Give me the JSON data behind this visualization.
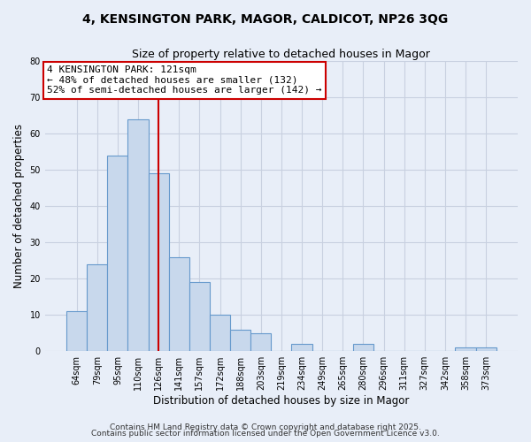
{
  "title": "4, KENSINGTON PARK, MAGOR, CALDICOT, NP26 3QG",
  "subtitle": "Size of property relative to detached houses in Magor",
  "xlabel": "Distribution of detached houses by size in Magor",
  "ylabel": "Number of detached properties",
  "categories": [
    "64sqm",
    "79sqm",
    "95sqm",
    "110sqm",
    "126sqm",
    "141sqm",
    "157sqm",
    "172sqm",
    "188sqm",
    "203sqm",
    "219sqm",
    "234sqm",
    "249sqm",
    "265sqm",
    "280sqm",
    "296sqm",
    "311sqm",
    "327sqm",
    "342sqm",
    "358sqm",
    "373sqm"
  ],
  "values": [
    11,
    24,
    54,
    64,
    49,
    26,
    19,
    10,
    6,
    5,
    0,
    2,
    0,
    0,
    2,
    0,
    0,
    0,
    0,
    1,
    1
  ],
  "bar_color": "#c8d8ec",
  "bar_edge_color": "#6699cc",
  "vline_index": 4,
  "vline_color": "#cc0000",
  "annotation_line1": "4 KENSINGTON PARK: 121sqm",
  "annotation_line2": "← 48% of detached houses are smaller (132)",
  "annotation_line3": "52% of semi-detached houses are larger (142) →",
  "annotation_box_edgecolor": "#cc0000",
  "annotation_box_facecolor": "#ffffff",
  "ylim": [
    0,
    80
  ],
  "yticks": [
    0,
    10,
    20,
    30,
    40,
    50,
    60,
    70,
    80
  ],
  "background_color": "#e8eef8",
  "grid_color": "#c8d0e0",
  "footer_line1": "Contains HM Land Registry data © Crown copyright and database right 2025.",
  "footer_line2": "Contains public sector information licensed under the Open Government Licence v3.0.",
  "title_fontsize": 10,
  "subtitle_fontsize": 9,
  "xlabel_fontsize": 8.5,
  "ylabel_fontsize": 8.5,
  "tick_fontsize": 7,
  "annotation_fontsize": 8,
  "footer_fontsize": 6.5
}
